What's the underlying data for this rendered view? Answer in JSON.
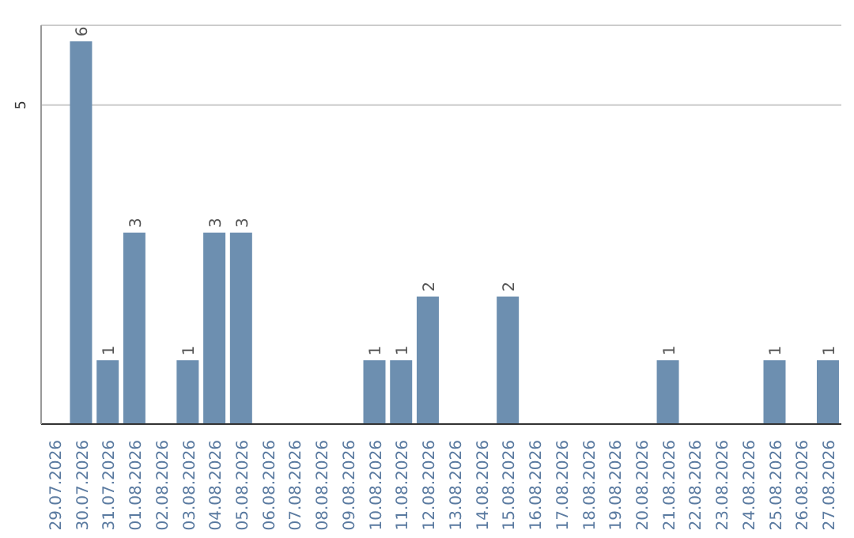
{
  "chart_data": {
    "type": "bar",
    "categories": [
      "29.07.2026",
      "30.07.2026",
      "31.07.2026",
      "01.08.2026",
      "02.08.2026",
      "03.08.2026",
      "04.08.2026",
      "05.08.2026",
      "06.08.2026",
      "07.08.2026",
      "08.08.2026",
      "09.08.2026",
      "10.08.2026",
      "11.08.2026",
      "12.08.2026",
      "13.08.2026",
      "14.08.2026",
      "15.08.2026",
      "16.08.2026",
      "17.08.2026",
      "18.08.2026",
      "19.08.2026",
      "20.08.2026",
      "21.08.2026",
      "22.08.2026",
      "23.08.2026",
      "24.08.2026",
      "25.08.2026",
      "26.08.2026",
      "27.08.2026"
    ],
    "values": [
      0,
      6,
      1,
      3,
      0,
      1,
      3,
      3,
      0,
      0,
      0,
      0,
      1,
      1,
      2,
      0,
      0,
      2,
      0,
      0,
      0,
      0,
      0,
      1,
      0,
      0,
      0,
      1,
      0,
      1
    ],
    "value_labels": [
      null,
      "6",
      "1",
      "3",
      null,
      "1",
      "3",
      "3",
      null,
      null,
      null,
      null,
      "1",
      "1",
      "2",
      null,
      null,
      "2",
      null,
      null,
      null,
      null,
      null,
      "1",
      null,
      null,
      null,
      "1",
      null,
      "1"
    ],
    "color": "#6d8fb0",
    "ylim": [
      0,
      6.25
    ],
    "yticks": [
      5
    ],
    "grid": "y"
  }
}
